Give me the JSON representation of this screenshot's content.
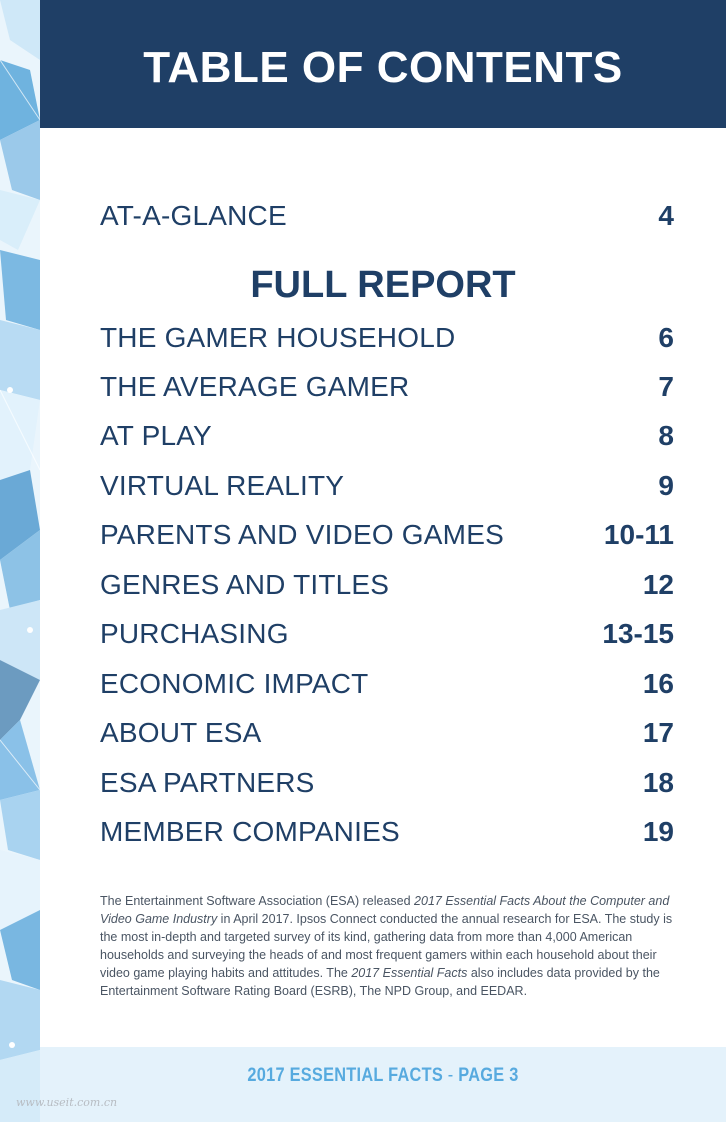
{
  "header": {
    "title": "TABLE OF CONTENTS"
  },
  "at_a_glance": {
    "label": "AT-A-GLANCE",
    "page": "4"
  },
  "full_report": {
    "heading": "FULL REPORT"
  },
  "toc": [
    {
      "label": "THE GAMER HOUSEHOLD",
      "page": "6"
    },
    {
      "label": "THE AVERAGE GAMER",
      "page": "7"
    },
    {
      "label": "AT PLAY",
      "page": "8"
    },
    {
      "label": "VIRTUAL REALITY",
      "page": "9"
    },
    {
      "label": "PARENTS AND VIDEO GAMES",
      "page": "10-11"
    },
    {
      "label": "GENRES AND TITLES",
      "page": "12"
    },
    {
      "label": "PURCHASING",
      "page": "13-15"
    },
    {
      "label": "ECONOMIC IMPACT",
      "page": "16"
    },
    {
      "label": "ABOUT ESA",
      "page": "17"
    },
    {
      "label": "ESA PARTNERS",
      "page": "18"
    },
    {
      "label": "MEMBER COMPANIES",
      "page": "19"
    }
  ],
  "about": {
    "part1": "The Entertainment Software Association (ESA) released ",
    "title1": "2017 Essential Facts About the Computer and Video Game Industry",
    "part2": " in April 2017. Ipsos Connect conducted the annual research for ESA. The study is the most in-depth and targeted survey of its kind, gathering data from more than 4,000 American households and surveying the heads of and most frequent gamers within each household about their video game playing habits and attitudes. The ",
    "title2": "2017 Essential Facts",
    "part3": " also includes data provided by the Entertainment Software Rating Board (ESRB), The NPD Group, and EEDAR."
  },
  "footer": {
    "title": "2017 ESSENTIAL FACTS",
    "separator": " - ",
    "page": "PAGE 3"
  },
  "watermark": "www.useit.com.cn",
  "colors": {
    "navy": "#1f3f66",
    "footer_bg": "#e4f2fb",
    "footer_text": "#57aadf"
  }
}
